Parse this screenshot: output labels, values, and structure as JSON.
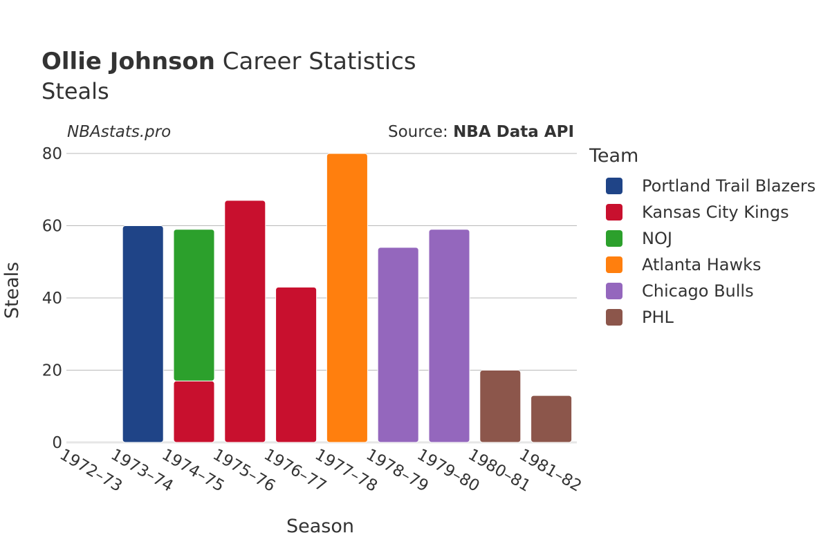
{
  "header": {
    "title_bold": "Ollie Johnson",
    "title_rest": "Career Statistics",
    "subtitle": "Steals",
    "watermark": "NBAstats.pro",
    "source_prefix": "Source: ",
    "source_name": "NBA Data API"
  },
  "legend": {
    "title": "Team",
    "items": [
      {
        "label": "Portland Trail Blazers",
        "color": "#1f4487"
      },
      {
        "label": "Kansas City Kings",
        "color": "#c8102e"
      },
      {
        "label": "NOJ",
        "color": "#2ca02c"
      },
      {
        "label": "Atlanta Hawks",
        "color": "#ff7f0e"
      },
      {
        "label": "Chicago Bulls",
        "color": "#9467bd"
      },
      {
        "label": "PHL",
        "color": "#8c564b"
      }
    ]
  },
  "chart_data": {
    "type": "bar",
    "stacked": true,
    "xlabel": "Season",
    "ylabel": "Steals",
    "ylim": [
      0,
      80
    ],
    "yticks": [
      0,
      20,
      40,
      60,
      80
    ],
    "grid": true,
    "legend_position": "right",
    "categories": [
      "1972–73",
      "1973–74",
      "1974–75",
      "1975–76",
      "1976–77",
      "1977–78",
      "1978–79",
      "1979–80",
      "1980–81",
      "1981–82"
    ],
    "series": [
      {
        "name": "Portland Trail Blazers",
        "color": "#1f4487",
        "values": [
          null,
          60,
          null,
          null,
          null,
          null,
          null,
          null,
          null,
          null
        ]
      },
      {
        "name": "Kansas City Kings",
        "color": "#c8102e",
        "values": [
          null,
          null,
          17,
          67,
          43,
          null,
          null,
          null,
          null,
          null
        ]
      },
      {
        "name": "NOJ",
        "color": "#2ca02c",
        "values": [
          null,
          null,
          42,
          null,
          null,
          null,
          null,
          null,
          null,
          null
        ]
      },
      {
        "name": "Atlanta Hawks",
        "color": "#ff7f0e",
        "values": [
          null,
          null,
          null,
          null,
          null,
          80,
          null,
          null,
          null,
          null
        ]
      },
      {
        "name": "Chicago Bulls",
        "color": "#9467bd",
        "values": [
          null,
          null,
          null,
          null,
          null,
          null,
          54,
          59,
          null,
          null
        ]
      },
      {
        "name": "PHL",
        "color": "#8c564b",
        "values": [
          null,
          null,
          null,
          null,
          null,
          null,
          null,
          null,
          20,
          13
        ]
      }
    ]
  }
}
